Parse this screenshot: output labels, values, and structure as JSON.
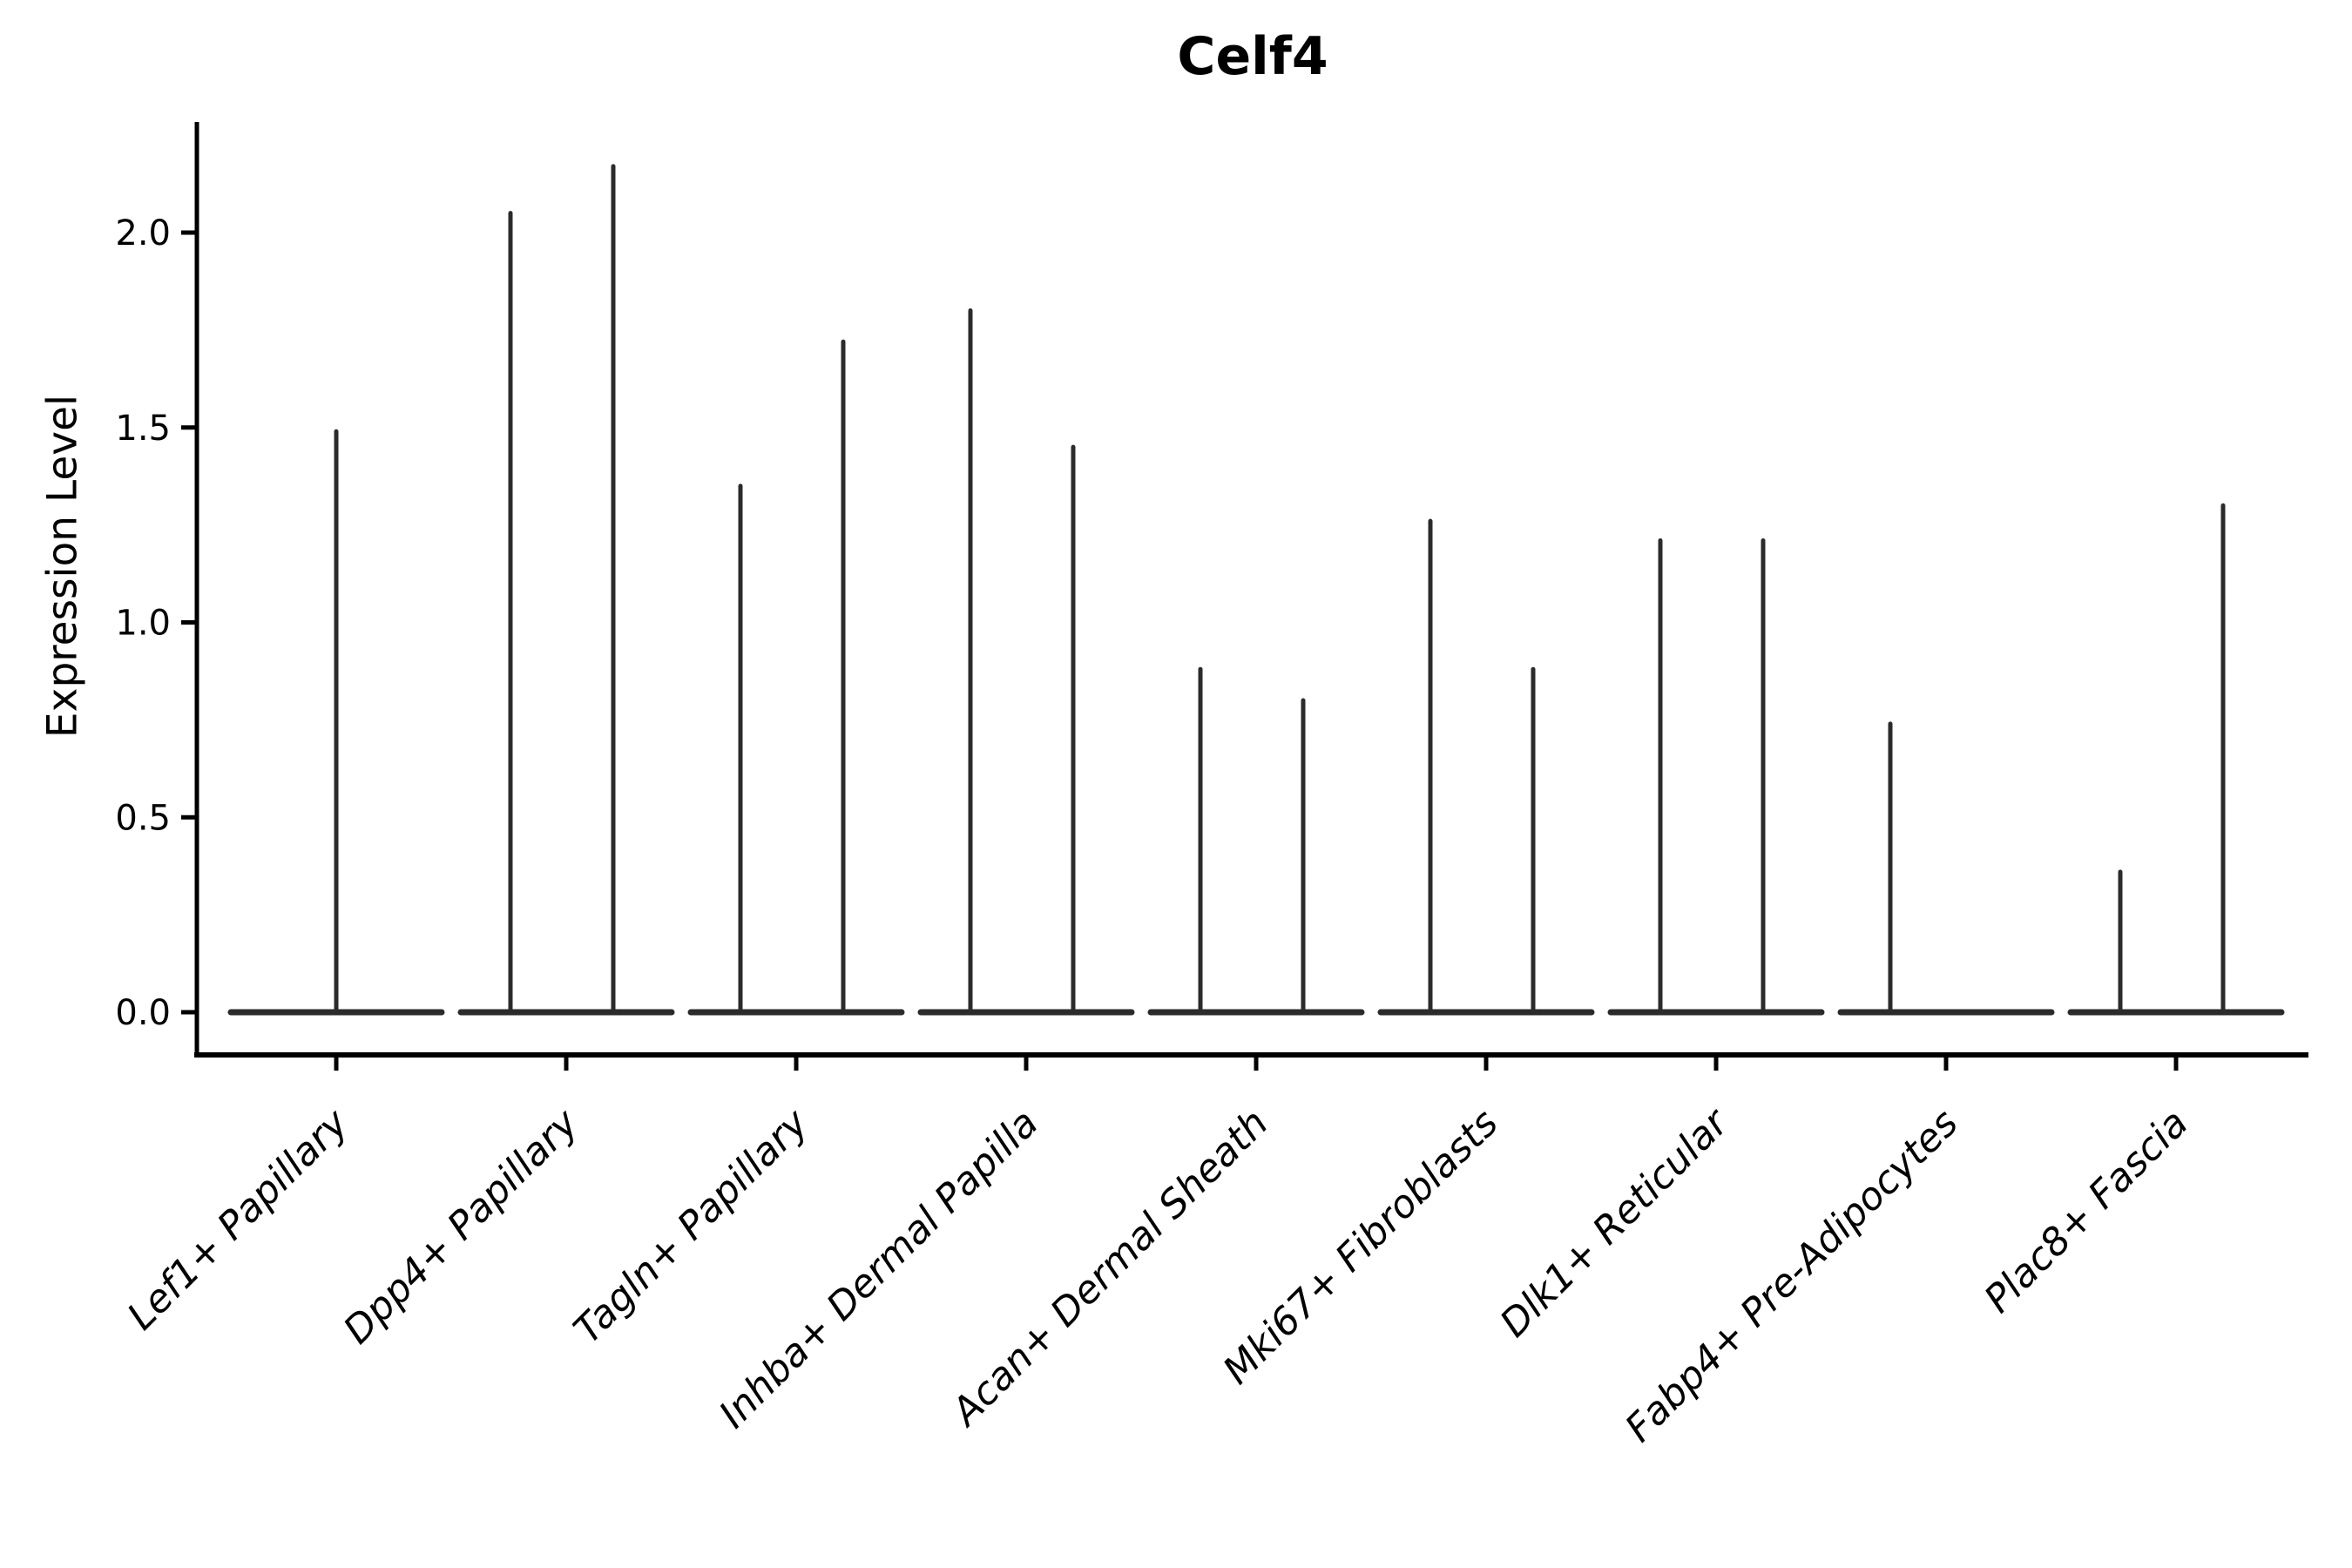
{
  "chart_data": {
    "type": "violin",
    "title": "Celf4",
    "ylabel": "Expression Level",
    "xlabel": "",
    "grid": false,
    "legend": null,
    "background_color": "#ffffff",
    "violin_color": "#2b2b2b",
    "axis_color": "#000000",
    "ylim": [
      -0.11,
      2.28
    ],
    "y_ticks": [
      {
        "value": 0.0,
        "label": "0.0"
      },
      {
        "value": 0.5,
        "label": "0.5"
      },
      {
        "value": 1.0,
        "label": "1.0"
      },
      {
        "value": 1.5,
        "label": "1.5"
      },
      {
        "value": 2.0,
        "label": "2.0"
      }
    ],
    "categories": [
      {
        "label": "Lef1+ Papillary",
        "spikes": [
          {
            "position": "center",
            "max_expression": 1.49
          }
        ]
      },
      {
        "label": "Dpp4+ Papillary",
        "spikes": [
          {
            "position": "left",
            "max_expression": 2.05
          },
          {
            "position": "right",
            "max_expression": 2.17
          }
        ]
      },
      {
        "label": "Tagln+ Papillary",
        "spikes": [
          {
            "position": "left",
            "max_expression": 1.35
          },
          {
            "position": "right",
            "max_expression": 1.72
          }
        ]
      },
      {
        "label": "Inhba+ Dermal Papilla",
        "spikes": [
          {
            "position": "left",
            "max_expression": 1.8
          },
          {
            "position": "right",
            "max_expression": 1.45
          }
        ]
      },
      {
        "label": "Acan+ Dermal Sheath",
        "spikes": [
          {
            "position": "left",
            "max_expression": 0.88
          },
          {
            "position": "right",
            "max_expression": 0.8
          }
        ]
      },
      {
        "label": "Mki67+ Fibroblasts",
        "spikes": [
          {
            "position": "left",
            "max_expression": 1.26
          },
          {
            "position": "right",
            "max_expression": 0.88
          }
        ]
      },
      {
        "label": "Dlk1+ Reticular",
        "spikes": [
          {
            "position": "left",
            "max_expression": 1.21
          },
          {
            "position": "right",
            "max_expression": 1.21
          }
        ]
      },
      {
        "label": "Fabp4+ Pre-Adipocytes",
        "spikes": [
          {
            "position": "left",
            "max_expression": 0.74
          }
        ]
      },
      {
        "label": "Plac8+ Fascia",
        "spikes": [
          {
            "position": "left",
            "max_expression": 0.36
          },
          {
            "position": "right",
            "max_expression": 1.3
          }
        ]
      }
    ]
  }
}
